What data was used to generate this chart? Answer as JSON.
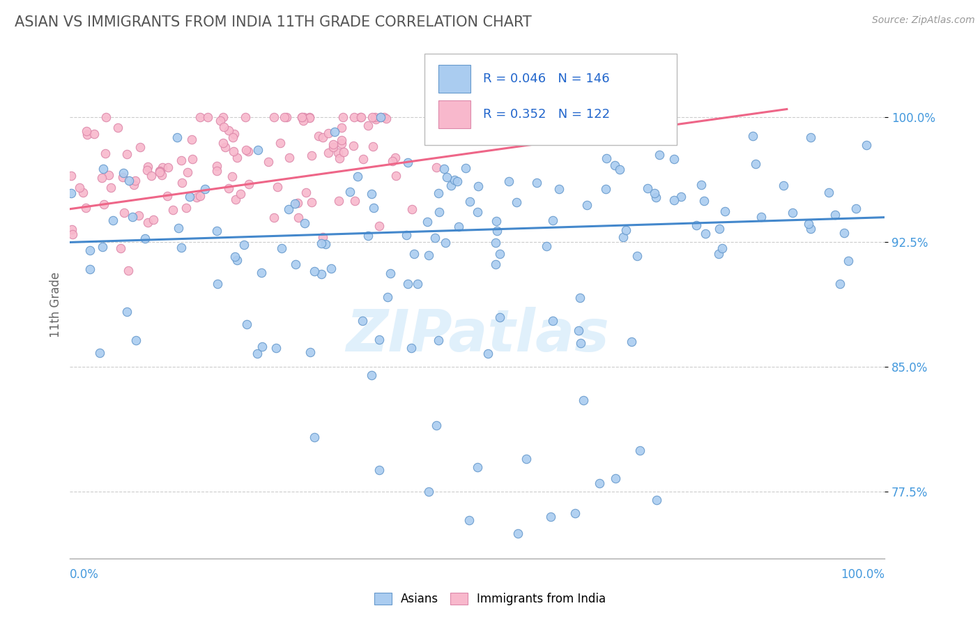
{
  "title": "ASIAN VS IMMIGRANTS FROM INDIA 11TH GRADE CORRELATION CHART",
  "source": "Source: ZipAtlas.com",
  "ylabel": "11th Grade",
  "y_tick_labels": [
    "77.5%",
    "85.0%",
    "92.5%",
    "100.0%"
  ],
  "y_tick_values": [
    0.775,
    0.85,
    0.925,
    1.0
  ],
  "x_range": [
    0.0,
    1.0
  ],
  "y_range": [
    0.735,
    1.04
  ],
  "asian_color": "#aaccf0",
  "asian_edge_color": "#6699cc",
  "india_color": "#f8b8cc",
  "india_edge_color": "#dd88aa",
  "asian_line_color": "#4488cc",
  "india_line_color": "#ee6688",
  "legend_r_asian": "R = 0.046",
  "legend_n_asian": "N = 146",
  "legend_r_india": "R = 0.352",
  "legend_n_india": "N = 122",
  "watermark_text": "ZIPatlas",
  "title_color": "#555555",
  "axis_label_color": "#4499dd",
  "scatter_size": 80,
  "grid_color": "#cccccc",
  "background_color": "#ffffff",
  "legend_value_color": "#2266cc",
  "asian_trend_start_x": 0.0,
  "asian_trend_end_x": 1.0,
  "asian_trend_start_y": 0.925,
  "asian_trend_end_y": 0.94,
  "india_trend_start_x": 0.0,
  "india_trend_end_x": 0.88,
  "india_trend_start_y": 0.945,
  "india_trend_end_y": 1.005
}
